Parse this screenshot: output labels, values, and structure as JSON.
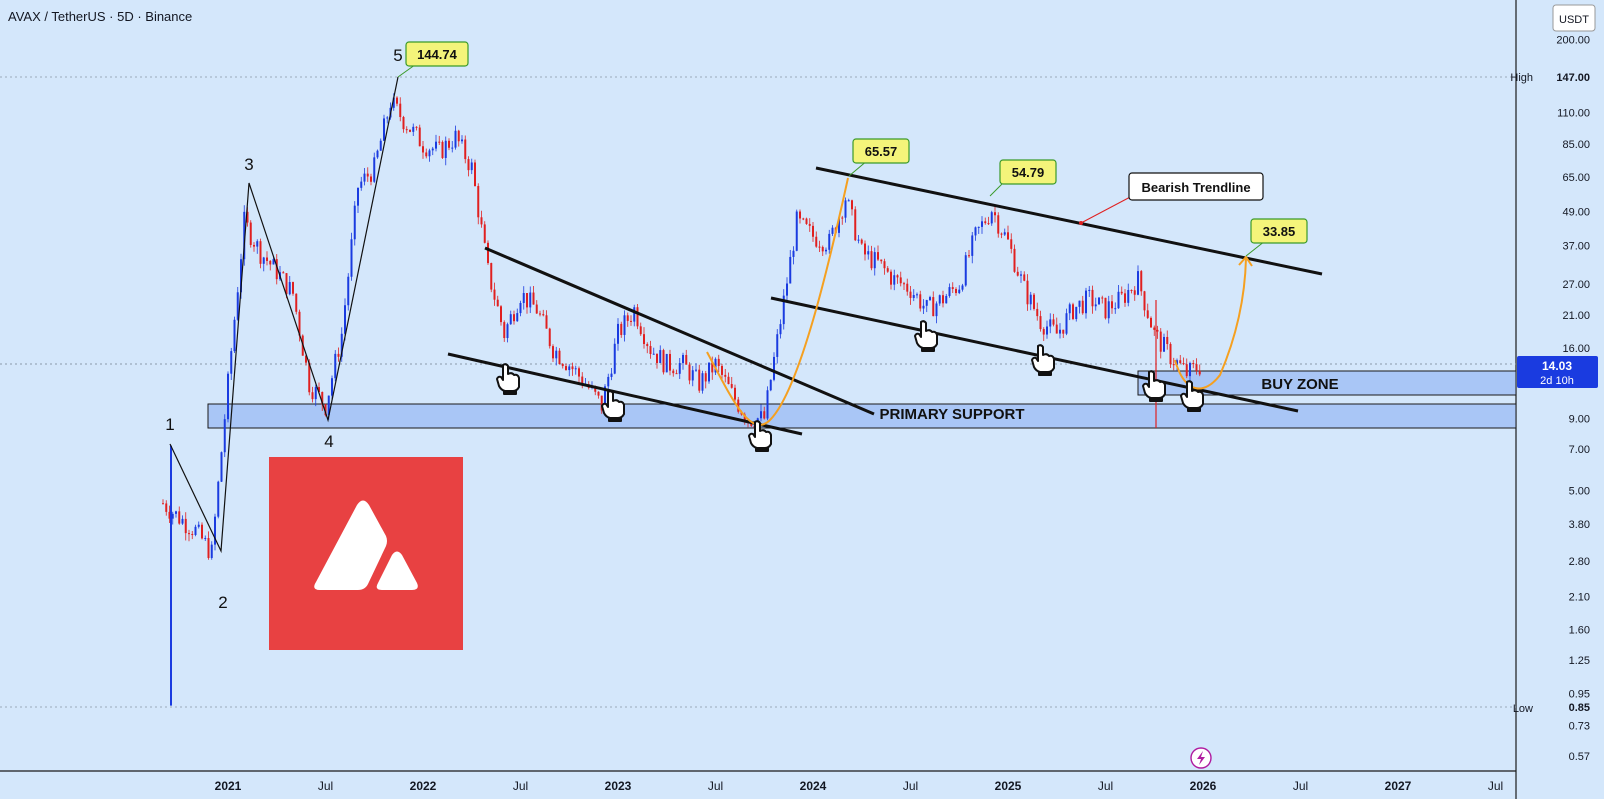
{
  "header": {
    "title": "AVAX / TetherUS · 5D · Binance"
  },
  "axis": {
    "currency": "USDT",
    "y_ticks": [
      "200.00",
      "147.00",
      "110.00",
      "85.00",
      "65.00",
      "49.00",
      "37.00",
      "27.00",
      "21.00",
      "16.00",
      "9.00",
      "7.00",
      "5.00",
      "3.80",
      "2.80",
      "2.10",
      "1.60",
      "1.25",
      "0.95",
      "0.85",
      "0.73",
      "0.57"
    ],
    "x_ticks": [
      "2021",
      "Jul",
      "2022",
      "Jul",
      "2023",
      "Jul",
      "2024",
      "Jul",
      "2025",
      "Jul",
      "2026",
      "Jul",
      "2027",
      "Jul"
    ],
    "high_label": "High",
    "high_value": "147.00",
    "low_label": "Low",
    "low_value": "0.85",
    "last_price": "14.03",
    "countdown": "2d 10h"
  },
  "annotations": {
    "price_labels": [
      "144.74",
      "65.57",
      "54.79",
      "33.85"
    ],
    "wave_labels": [
      "1",
      "2",
      "3",
      "4",
      "5"
    ],
    "bearish_trendline": "Bearish Trendline",
    "buy_zone": "BUY ZONE",
    "primary_support": "PRIMARY SUPPORT"
  },
  "colors": {
    "background": "#d4e7fb",
    "up_candle": "#1a3be0",
    "down_candle": "#e02020",
    "label_bg": "#f4f47a",
    "label_border": "#3a9a2a",
    "zone_fill": "#a9c6f6",
    "forecast": "#f5a020",
    "logo_bg": "#e84142"
  },
  "chart_data": {
    "type": "candlestick",
    "title": "AVAX / TetherUS · 5D · Binance",
    "y_scale": "log",
    "ylim": [
      0.5,
      220
    ],
    "x_range": [
      "2020-09",
      "2027-11"
    ],
    "series": [
      {
        "x": [
          "2020-09",
          "2020-10",
          "2020-11",
          "2020-12",
          "2021-01",
          "2021-02",
          "2021-03",
          "2021-04",
          "2021-05",
          "2021-06",
          "2021-07",
          "2021-08",
          "2021-09",
          "2021-10",
          "2021-11",
          "2021-12",
          "2022-01",
          "2022-02",
          "2022-03",
          "2022-04",
          "2022-05",
          "2022-06",
          "2022-07",
          "2022-08",
          "2022-09",
          "2022-10",
          "2022-11",
          "2022-12",
          "2023-01",
          "2023-02",
          "2023-03",
          "2023-04",
          "2023-05",
          "2023-06",
          "2023-07",
          "2023-08",
          "2023-09",
          "2023-10",
          "2023-11",
          "2023-12",
          "2024-01",
          "2024-02",
          "2024-03",
          "2024-04",
          "2024-05",
          "2024-06",
          "2024-07",
          "2024-08",
          "2024-09",
          "2024-10",
          "2024-11",
          "2024-12",
          "2025-01",
          "2025-02",
          "2025-03",
          "2025-04",
          "2025-05",
          "2025-06",
          "2025-07",
          "2025-08",
          "2025-09",
          "2025-10",
          "2025-11",
          "2025-12",
          "2026-01"
        ],
        "close": [
          4.5,
          4.0,
          3.6,
          3.0,
          12,
          45,
          35,
          30,
          25,
          12,
          10,
          18,
          60,
          70,
          120,
          100,
          85,
          80,
          90,
          70,
          30,
          18,
          25,
          22,
          16,
          14,
          12,
          10,
          18,
          22,
          16,
          14,
          14,
          12,
          14,
          11,
          9,
          9,
          20,
          45,
          40,
          38,
          55,
          35,
          32,
          28,
          26,
          22,
          24,
          27,
          40,
          50,
          38,
          26,
          20,
          18,
          22,
          24,
          22,
          24,
          28,
          18,
          15,
          13,
          14.03
        ]
      }
    ],
    "extremes": {
      "high": 147.0,
      "low": 0.85,
      "last": 14.03
    },
    "price_labels": [
      {
        "value": 144.74,
        "date": "2021-11"
      },
      {
        "value": 65.57,
        "date": "2024-03"
      },
      {
        "value": 54.79,
        "date": "2024-12"
      },
      {
        "value": 33.85,
        "date": "2026-04"
      }
    ],
    "zones": [
      {
        "name": "BUY ZONE",
        "low": 11.0,
        "high": 13.5
      },
      {
        "name": "PRIMARY SUPPORT",
        "low": 8.0,
        "high": 10.0
      }
    ]
  }
}
